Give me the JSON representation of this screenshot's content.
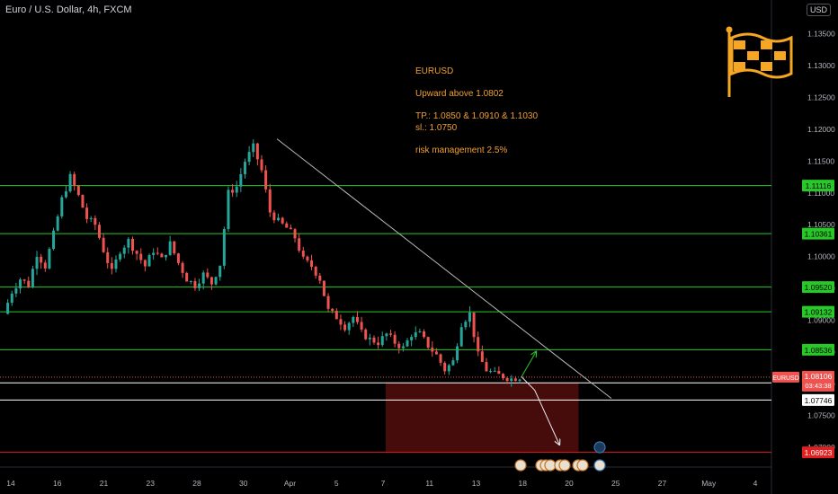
{
  "header": {
    "symbol_title": "Euro / U.S. Dollar, 4h, FXCM",
    "currency_button": "USD"
  },
  "annotation": {
    "lines": [
      "EURUSD",
      "Upward above 1.0802",
      "TP.: 1.0850 & 1.0910 & 1.1030",
      "sl.: 1.0750",
      "risk management 2.5%"
    ],
    "color": "#f0a030"
  },
  "colors": {
    "up": "#26a69a",
    "down": "#ef5350",
    "level": "#28c828",
    "support": "#ffffff",
    "stop": "#e02020",
    "zone": "#4a0c0c",
    "trend": "#b8b8b8",
    "logo": "#f5a623"
  },
  "icons": {
    "logo": "checkered-flag-icon",
    "events": "event-flag-icons"
  },
  "chart_data": {
    "type": "candlestick",
    "title": "Euro / U.S. Dollar, 4h, FXCM",
    "ylim": [
      1.0672,
      1.1375
    ],
    "x_labels": [
      "14",
      "16",
      "21",
      "23",
      "28",
      "30",
      "Apr",
      "5",
      "7",
      "11",
      "13",
      "18",
      "20",
      "25",
      "27",
      "May",
      "4"
    ],
    "y_ticks": [
      "1.13500",
      "1.13000",
      "1.12500",
      "1.12000",
      "1.11500",
      "1.11000",
      "1.10500",
      "1.10000",
      "1.09500",
      "1.09000",
      "1.08500",
      "1.08000",
      "1.07500",
      "1.07000"
    ],
    "green_levels": [
      {
        "label": "1.11116",
        "value": 1.11116
      },
      {
        "label": "1.10361",
        "value": 1.10361
      },
      {
        "label": "1.09520",
        "value": 1.0952
      },
      {
        "label": "1.09132",
        "value": 1.09132
      },
      {
        "label": "1.08536",
        "value": 1.08536
      }
    ],
    "white_levels": [
      {
        "label": "1.08015",
        "value": 1.08015
      },
      {
        "label": "1.07746",
        "value": 1.07746
      }
    ],
    "red_level": {
      "label": "1.06923",
      "value": 1.06923
    },
    "current": {
      "symbol": "EURUSD",
      "price": "1.08106",
      "value": 1.08106,
      "countdown": "03:43:38"
    },
    "trendline": [
      {
        "x": 0,
        "y": 1.1185
      },
      {
        "x": 1,
        "y": 1.0777
      }
    ],
    "stop_zone": {
      "x_start": 0.5,
      "x_end": 0.75,
      "y_top": 1.0802,
      "y_bottom": 1.0692
    },
    "projection_up": [
      {
        "x": 0,
        "y": 1.0811
      },
      {
        "x": 1,
        "y": 1.085
      }
    ],
    "projection_down": [
      {
        "x": 0,
        "y": 1.0811
      },
      {
        "x": 0.35,
        "y": 1.079
      },
      {
        "x": 1,
        "y": 1.0705
      }
    ],
    "path": [
      [
        0,
        1.091
      ],
      [
        2,
        1.0945
      ],
      [
        4,
        1.0965
      ],
      [
        6,
        1.0955
      ],
      [
        8,
        1.1005
      ],
      [
        10,
        1.0985
      ],
      [
        12,
        1.1035
      ],
      [
        14,
        1.109
      ],
      [
        16,
        1.1125
      ],
      [
        18,
        1.1095
      ],
      [
        20,
        1.106
      ],
      [
        22,
        1.105
      ],
      [
        24,
        1.101
      ],
      [
        26,
        1.0975
      ],
      [
        28,
        1.101
      ],
      [
        30,
        1.1025
      ],
      [
        32,
        1.1005
      ],
      [
        34,
        1.0985
      ],
      [
        36,
        1.101
      ],
      [
        38,
        1.0995
      ],
      [
        40,
        1.102
      ],
      [
        42,
        1.099
      ],
      [
        44,
        1.0965
      ],
      [
        46,
        1.0955
      ],
      [
        48,
        1.0972
      ],
      [
        50,
        1.0958
      ],
      [
        52,
        1.0988
      ],
      [
        54,
        1.11
      ],
      [
        56,
        1.111
      ],
      [
        58,
        1.115
      ],
      [
        60,
        1.1172
      ],
      [
        62,
        1.1135
      ],
      [
        64,
        1.107
      ],
      [
        66,
        1.1055
      ],
      [
        68,
        1.1045
      ],
      [
        70,
        1.103
      ],
      [
        72,
        1.0995
      ],
      [
        74,
        1.0985
      ],
      [
        76,
        1.0965
      ],
      [
        78,
        1.0915
      ],
      [
        80,
        1.0905
      ],
      [
        82,
        1.089
      ],
      [
        84,
        1.0905
      ],
      [
        86,
        1.088
      ],
      [
        88,
        1.087
      ],
      [
        90,
        1.0865
      ],
      [
        92,
        1.0878
      ],
      [
        94,
        1.0865
      ],
      [
        96,
        1.0856
      ],
      [
        98,
        1.0878
      ],
      [
        100,
        1.0878
      ],
      [
        102,
        1.086
      ],
      [
        104,
        1.0845
      ],
      [
        106,
        1.0822
      ],
      [
        108,
        1.0835
      ],
      [
        110,
        1.0895
      ],
      [
        112,
        1.091
      ],
      [
        114,
        1.0845
      ],
      [
        116,
        1.0822
      ],
      [
        118,
        1.0815
      ],
      [
        120,
        1.0812
      ],
      [
        122,
        1.0808
      ],
      [
        124,
        1.0811
      ]
    ]
  }
}
